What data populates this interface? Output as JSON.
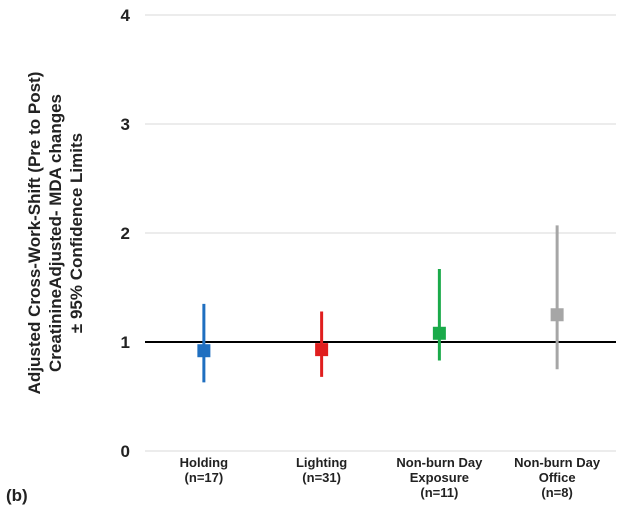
{
  "panel_label": "(b)",
  "chart_data": {
    "type": "scatter",
    "ylabel_lines": [
      "Adjusted Cross-Work-Shift (Pre to Post)",
      "CreatinineAdjusted- MDA changes",
      "± 95% Confidence Limits"
    ],
    "xlabel": "",
    "ylim": [
      0,
      4
    ],
    "yticks": [
      0,
      1,
      2,
      3,
      4
    ],
    "grid": true,
    "reference_line": 1,
    "categories": [
      {
        "lines": [
          "Holding",
          "(n=17)"
        ]
      },
      {
        "lines": [
          "Lighting",
          "(n=31)"
        ]
      },
      {
        "lines": [
          "Non-burn Day",
          "Exposure",
          "(n=11)"
        ]
      },
      {
        "lines": [
          "Non-burn Day",
          "Office",
          "(n=8)"
        ]
      }
    ],
    "points": [
      {
        "value": 0.92,
        "lower": 0.63,
        "upper": 1.35,
        "color": "#1f6fc0"
      },
      {
        "value": 0.93,
        "lower": 0.68,
        "upper": 1.28,
        "color": "#e01e1e"
      },
      {
        "value": 1.08,
        "lower": 0.83,
        "upper": 1.67,
        "color": "#1aaa4a"
      },
      {
        "value": 1.25,
        "lower": 0.75,
        "upper": 2.07,
        "color": "#a6a6a6"
      }
    ]
  }
}
